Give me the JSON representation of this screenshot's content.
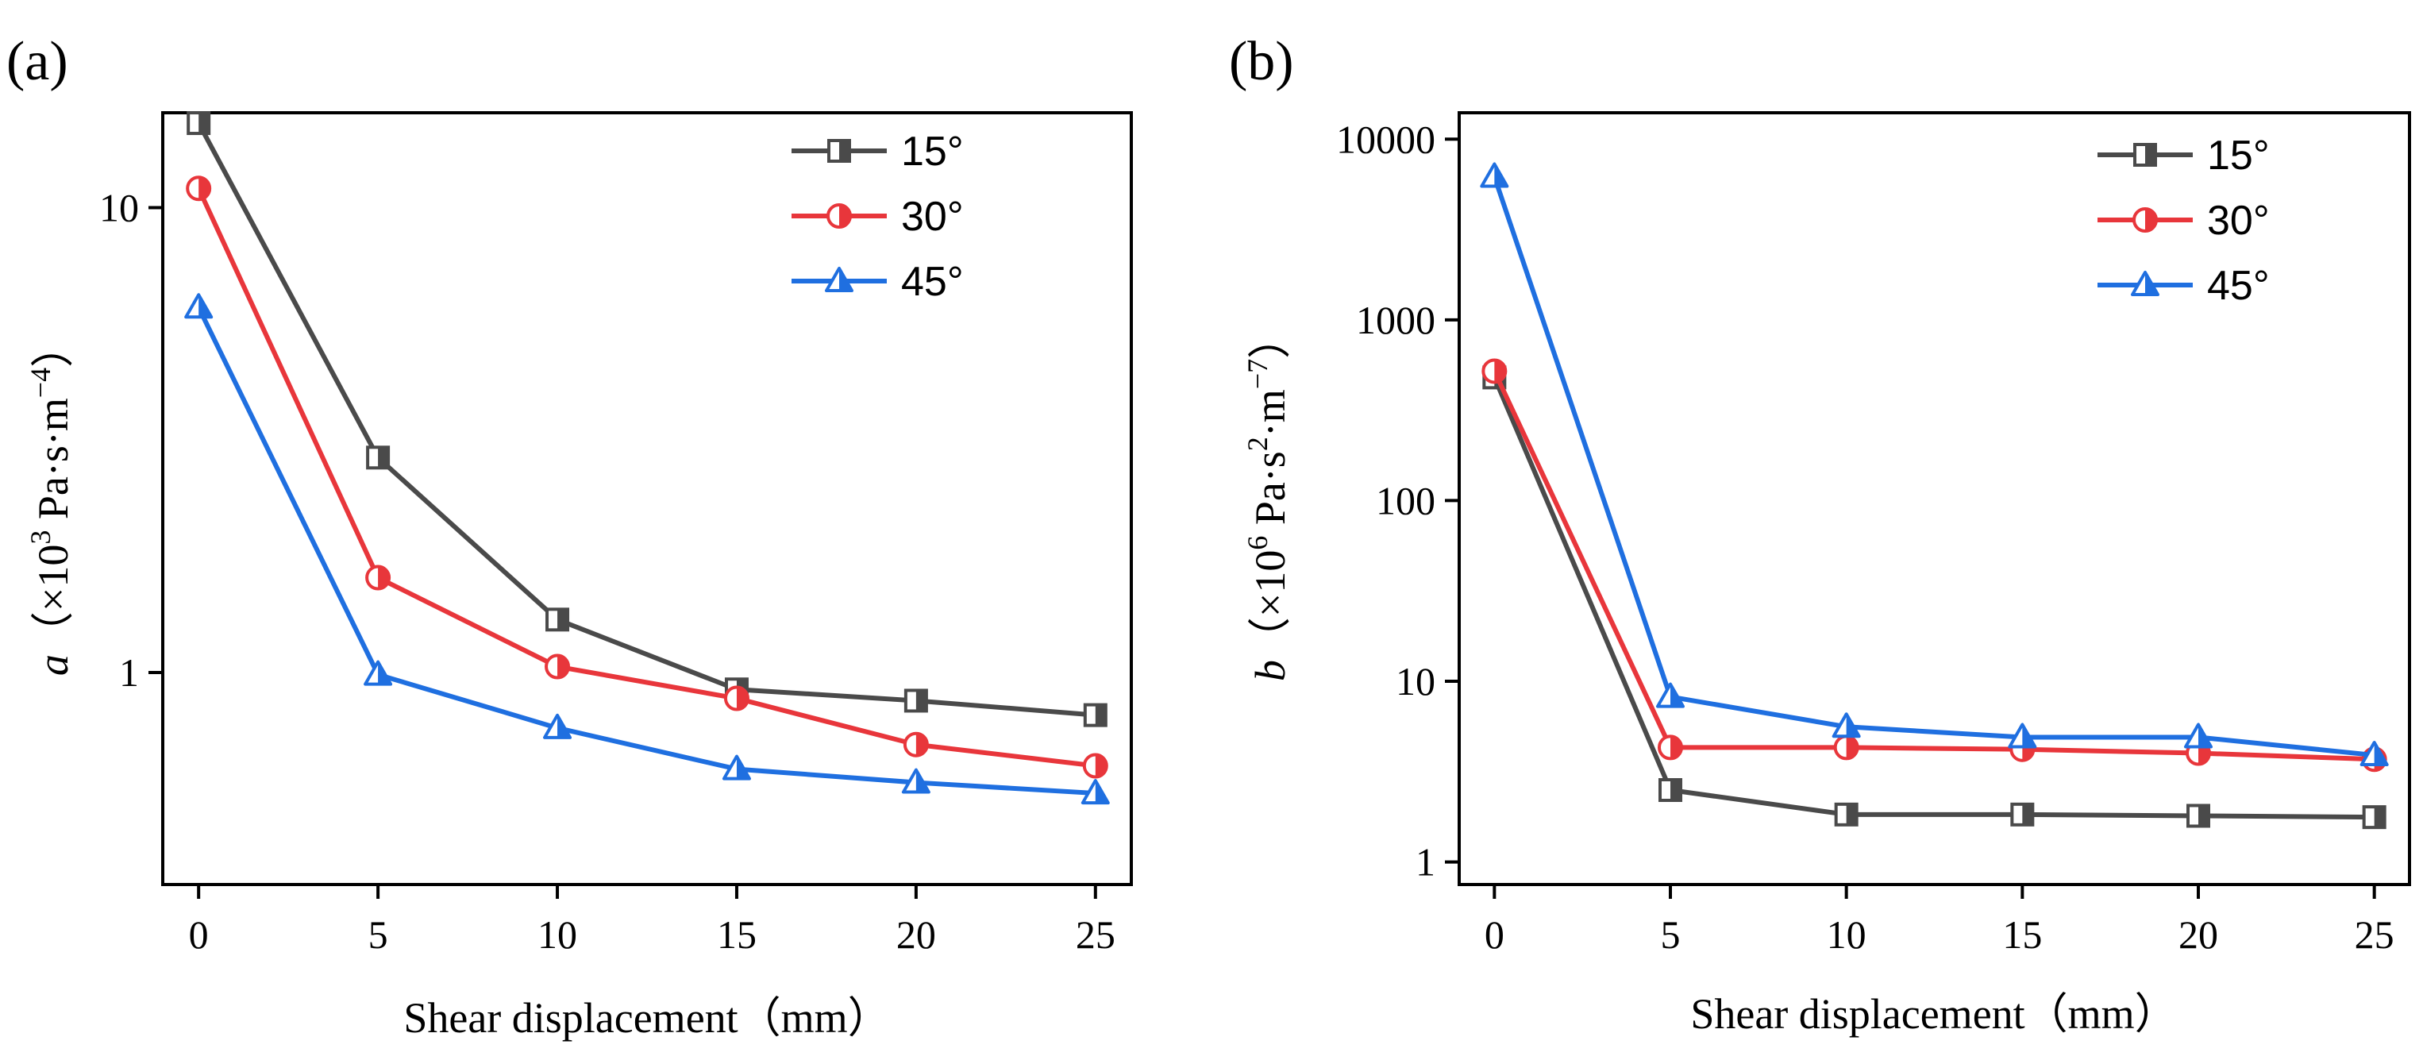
{
  "chart_data": [
    {
      "panel_label": "(a)",
      "type": "line",
      "yscale": "log",
      "x": [
        0,
        5,
        10,
        15,
        20,
        25
      ],
      "xticks": [
        "0",
        "5",
        "10",
        "15",
        "20",
        "25"
      ],
      "xlim": [
        -1,
        26
      ],
      "ylim": [
        0.35,
        16
      ],
      "yticks": [
        {
          "value": 1,
          "label": "1"
        },
        {
          "value": 10,
          "label": "10"
        }
      ],
      "xlabel": "Shear displacement（mm）",
      "ylabel_var": "a",
      "ylabel_pre": "（×10",
      "ylabel_exp": "3",
      "ylabel_mid": " Pa·s·m",
      "ylabel_exp2": "−4",
      "ylabel_post": "）",
      "legend_position": "top-right",
      "series": [
        {
          "name": "15°",
          "color": "#4a4a4a",
          "marker": "square",
          "values": [
            15.2,
            2.9,
            1.3,
            0.92,
            0.87,
            0.81
          ]
        },
        {
          "name": "30°",
          "color": "#e8363b",
          "marker": "circle",
          "values": [
            11.0,
            1.6,
            1.03,
            0.88,
            0.7,
            0.63
          ]
        },
        {
          "name": "45°",
          "color": "#1f6fe0",
          "marker": "triangle",
          "values": [
            6.1,
            0.99,
            0.76,
            0.62,
            0.58,
            0.55
          ]
        }
      ]
    },
    {
      "panel_label": "(b)",
      "type": "line",
      "yscale": "log",
      "x": [
        0,
        5,
        10,
        15,
        20,
        25
      ],
      "xticks": [
        "0",
        "5",
        "10",
        "15",
        "20",
        "25"
      ],
      "xlim": [
        -1,
        26
      ],
      "ylim": [
        0.75,
        14000
      ],
      "yticks": [
        {
          "value": 1,
          "label": "1"
        },
        {
          "value": 10,
          "label": "10"
        },
        {
          "value": 100,
          "label": "100"
        },
        {
          "value": 1000,
          "label": "1000"
        },
        {
          "value": 10000,
          "label": "10000"
        }
      ],
      "xlabel": "Shear displacement（mm）",
      "ylabel_var": "b",
      "ylabel_pre": "（×10",
      "ylabel_exp": "6",
      "ylabel_mid": " Pa·s",
      "ylabel_exp2": "2",
      "ylabel_mid2": "·m",
      "ylabel_exp3": "−7",
      "ylabel_post": "）",
      "legend_position": "top-right",
      "series": [
        {
          "name": "15°",
          "color": "#4a4a4a",
          "marker": "square",
          "values": [
            480,
            2.5,
            1.83,
            1.83,
            1.8,
            1.77
          ]
        },
        {
          "name": "30°",
          "color": "#e8363b",
          "marker": "circle",
          "values": [
            520,
            4.3,
            4.3,
            4.2,
            4.0,
            3.7
          ]
        },
        {
          "name": "45°",
          "color": "#1f6fe0",
          "marker": "triangle",
          "values": [
            6200,
            8.2,
            5.6,
            4.9,
            4.9,
            3.9
          ]
        }
      ]
    }
  ]
}
